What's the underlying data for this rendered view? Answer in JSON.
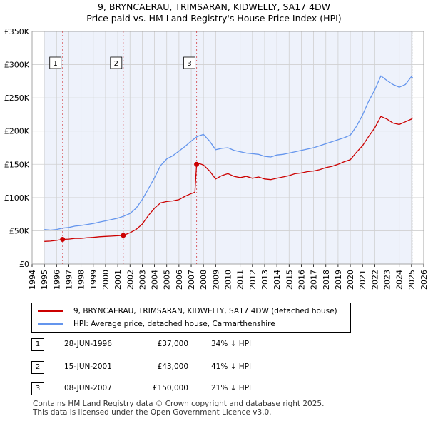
{
  "title_line1": "9, BRYNCAERAU, TRIMSARAN, KIDWELLY, SA17 4DW",
  "title_line2": "Price paid vs. HM Land Registry's House Price Index (HPI)",
  "colors": {
    "property": "#cc0000",
    "hpi": "#6495ed",
    "shade": "#dde6f7",
    "grid": "#d0d0d0"
  },
  "chart_data": {
    "type": "line",
    "title": "9, BRYNCAERAU, TRIMSARAN, KIDWELLY, SA17 4DW",
    "subtitle": "Price paid vs. HM Land Registry's House Price Index (HPI)",
    "xlabel": "",
    "ylabel": "",
    "xlim": [
      1994,
      2026
    ],
    "ylim": [
      0,
      350000
    ],
    "y_ticks": [
      0,
      50000,
      100000,
      150000,
      200000,
      250000,
      300000,
      350000
    ],
    "y_tick_labels": [
      "£0",
      "£50K",
      "£100K",
      "£150K",
      "£200K",
      "£250K",
      "£300K",
      "£350K"
    ],
    "x_ticks": [
      1994,
      1995,
      1996,
      1997,
      1998,
      1999,
      2000,
      2001,
      2002,
      2003,
      2004,
      2005,
      2006,
      2007,
      2008,
      2009,
      2010,
      2011,
      2012,
      2013,
      2014,
      2015,
      2016,
      2017,
      2018,
      2019,
      2020,
      2021,
      2022,
      2023,
      2024,
      2025,
      2026
    ],
    "x_tick_labels": [
      "1994",
      "1995",
      "1996",
      "1997",
      "1998",
      "1999",
      "2000",
      "2001",
      "2002",
      "2003",
      "2004",
      "2005",
      "2006",
      "2007",
      "2008",
      "2009",
      "2010",
      "2011",
      "2012",
      "2013",
      "2014",
      "2015",
      "2016",
      "2017",
      "2018",
      "2019",
      "2020",
      "2021",
      "2022",
      "2023",
      "2024",
      "2025",
      "2026"
    ],
    "data_range": [
      1995.0,
      2025.1
    ],
    "series": [
      {
        "name": "9, BRYNCAERAU, TRIMSARAN, KIDWELLY, SA17 4DW (detached house)",
        "color": "#cc0000",
        "points": [
          [
            1995.0,
            34000
          ],
          [
            1995.5,
            34500
          ],
          [
            1996.0,
            35500
          ],
          [
            1996.49,
            37000
          ],
          [
            1997.0,
            37500
          ],
          [
            1997.5,
            38500
          ],
          [
            1998.0,
            38500
          ],
          [
            1998.5,
            39500
          ],
          [
            1999.0,
            40000
          ],
          [
            1999.5,
            41000
          ],
          [
            2000.0,
            41500
          ],
          [
            2000.5,
            42000
          ],
          [
            2001.0,
            42500
          ],
          [
            2001.45,
            43000
          ],
          [
            2001.5,
            43500
          ],
          [
            2002.0,
            47000
          ],
          [
            2002.5,
            52000
          ],
          [
            2003.0,
            60000
          ],
          [
            2003.5,
            73000
          ],
          [
            2004.0,
            84000
          ],
          [
            2004.5,
            92000
          ],
          [
            2005.0,
            94000
          ],
          [
            2005.5,
            95000
          ],
          [
            2006.0,
            97000
          ],
          [
            2006.5,
            102000
          ],
          [
            2007.0,
            106000
          ],
          [
            2007.3,
            108000
          ],
          [
            2007.44,
            150000
          ],
          [
            2007.7,
            151000
          ],
          [
            2008.0,
            149000
          ],
          [
            2008.5,
            140000
          ],
          [
            2009.0,
            128000
          ],
          [
            2009.5,
            133000
          ],
          [
            2010.0,
            136000
          ],
          [
            2010.5,
            132000
          ],
          [
            2011.0,
            130000
          ],
          [
            2011.5,
            132000
          ],
          [
            2012.0,
            129000
          ],
          [
            2012.5,
            131000
          ],
          [
            2013.0,
            128000
          ],
          [
            2013.5,
            127000
          ],
          [
            2014.0,
            129000
          ],
          [
            2014.5,
            131000
          ],
          [
            2015.0,
            133000
          ],
          [
            2015.5,
            136000
          ],
          [
            2016.0,
            137000
          ],
          [
            2016.5,
            139000
          ],
          [
            2017.0,
            140000
          ],
          [
            2017.5,
            142000
          ],
          [
            2018.0,
            145000
          ],
          [
            2018.5,
            147000
          ],
          [
            2019.0,
            150000
          ],
          [
            2019.5,
            154000
          ],
          [
            2020.0,
            157000
          ],
          [
            2020.5,
            168000
          ],
          [
            2021.0,
            178000
          ],
          [
            2021.5,
            192000
          ],
          [
            2022.0,
            205000
          ],
          [
            2022.5,
            222000
          ],
          [
            2023.0,
            218000
          ],
          [
            2023.5,
            212000
          ],
          [
            2024.0,
            210000
          ],
          [
            2024.5,
            214000
          ],
          [
            2025.0,
            218000
          ],
          [
            2025.1,
            220000
          ]
        ]
      },
      {
        "name": "HPI: Average price, detached house, Carmarthenshire",
        "color": "#6495ed",
        "points": [
          [
            1995.0,
            52000
          ],
          [
            1995.5,
            51000
          ],
          [
            1996.0,
            52000
          ],
          [
            1996.5,
            54000
          ],
          [
            1997.0,
            55000
          ],
          [
            1997.5,
            57000
          ],
          [
            1998.0,
            58000
          ],
          [
            1998.5,
            59500
          ],
          [
            1999.0,
            61000
          ],
          [
            1999.5,
            63000
          ],
          [
            2000.0,
            65000
          ],
          [
            2000.5,
            67000
          ],
          [
            2001.0,
            69000
          ],
          [
            2001.5,
            72000
          ],
          [
            2002.0,
            76000
          ],
          [
            2002.5,
            84000
          ],
          [
            2003.0,
            97000
          ],
          [
            2003.5,
            113000
          ],
          [
            2004.0,
            130000
          ],
          [
            2004.5,
            148000
          ],
          [
            2005.0,
            158000
          ],
          [
            2005.5,
            163000
          ],
          [
            2006.0,
            170000
          ],
          [
            2006.5,
            177000
          ],
          [
            2007.0,
            185000
          ],
          [
            2007.5,
            192000
          ],
          [
            2008.0,
            195000
          ],
          [
            2008.5,
            185000
          ],
          [
            2009.0,
            172000
          ],
          [
            2009.5,
            174000
          ],
          [
            2010.0,
            175000
          ],
          [
            2010.5,
            171000
          ],
          [
            2011.0,
            169000
          ],
          [
            2011.5,
            167000
          ],
          [
            2012.0,
            166000
          ],
          [
            2012.5,
            165000
          ],
          [
            2013.0,
            162000
          ],
          [
            2013.5,
            161000
          ],
          [
            2014.0,
            164000
          ],
          [
            2014.5,
            165000
          ],
          [
            2015.0,
            167000
          ],
          [
            2015.5,
            169000
          ],
          [
            2016.0,
            171000
          ],
          [
            2016.5,
            173000
          ],
          [
            2017.0,
            175000
          ],
          [
            2017.5,
            178000
          ],
          [
            2018.0,
            181000
          ],
          [
            2018.5,
            184000
          ],
          [
            2019.0,
            187000
          ],
          [
            2019.5,
            190000
          ],
          [
            2020.0,
            194000
          ],
          [
            2020.5,
            207000
          ],
          [
            2021.0,
            224000
          ],
          [
            2021.5,
            245000
          ],
          [
            2022.0,
            262000
          ],
          [
            2022.5,
            283000
          ],
          [
            2023.0,
            276000
          ],
          [
            2023.5,
            270000
          ],
          [
            2024.0,
            266000
          ],
          [
            2024.5,
            270000
          ],
          [
            2025.0,
            282000
          ],
          [
            2025.1,
            280000
          ]
        ]
      }
    ],
    "sales": [
      {
        "label": "1",
        "x": 1996.49,
        "y": 37000
      },
      {
        "label": "2",
        "x": 2001.45,
        "y": 43000
      },
      {
        "label": "3",
        "x": 2007.44,
        "y": 150000
      }
    ],
    "shaded_ranges": [
      [
        1994,
        1995.0
      ],
      [
        2025.1,
        2026
      ]
    ]
  },
  "legend": {
    "items": [
      {
        "label": "9, BRYNCAERAU, TRIMSARAN, KIDWELLY, SA17 4DW (detached house)",
        "color": "#cc0000"
      },
      {
        "label": "HPI: Average price, detached house, Carmarthenshire",
        "color": "#6495ed"
      }
    ]
  },
  "sales_table": [
    {
      "num": "1",
      "date": "28-JUN-1996",
      "price": "£37,000",
      "hpi": "34% ↓ HPI"
    },
    {
      "num": "2",
      "date": "15-JUN-2001",
      "price": "£43,000",
      "hpi": "41% ↓ HPI"
    },
    {
      "num": "3",
      "date": "08-JUN-2007",
      "price": "£150,000",
      "hpi": "21% ↓ HPI"
    }
  ],
  "footer": {
    "line1": "Contains HM Land Registry data © Crown copyright and database right 2025.",
    "line2": "This data is licensed under the Open Government Licence v3.0."
  }
}
